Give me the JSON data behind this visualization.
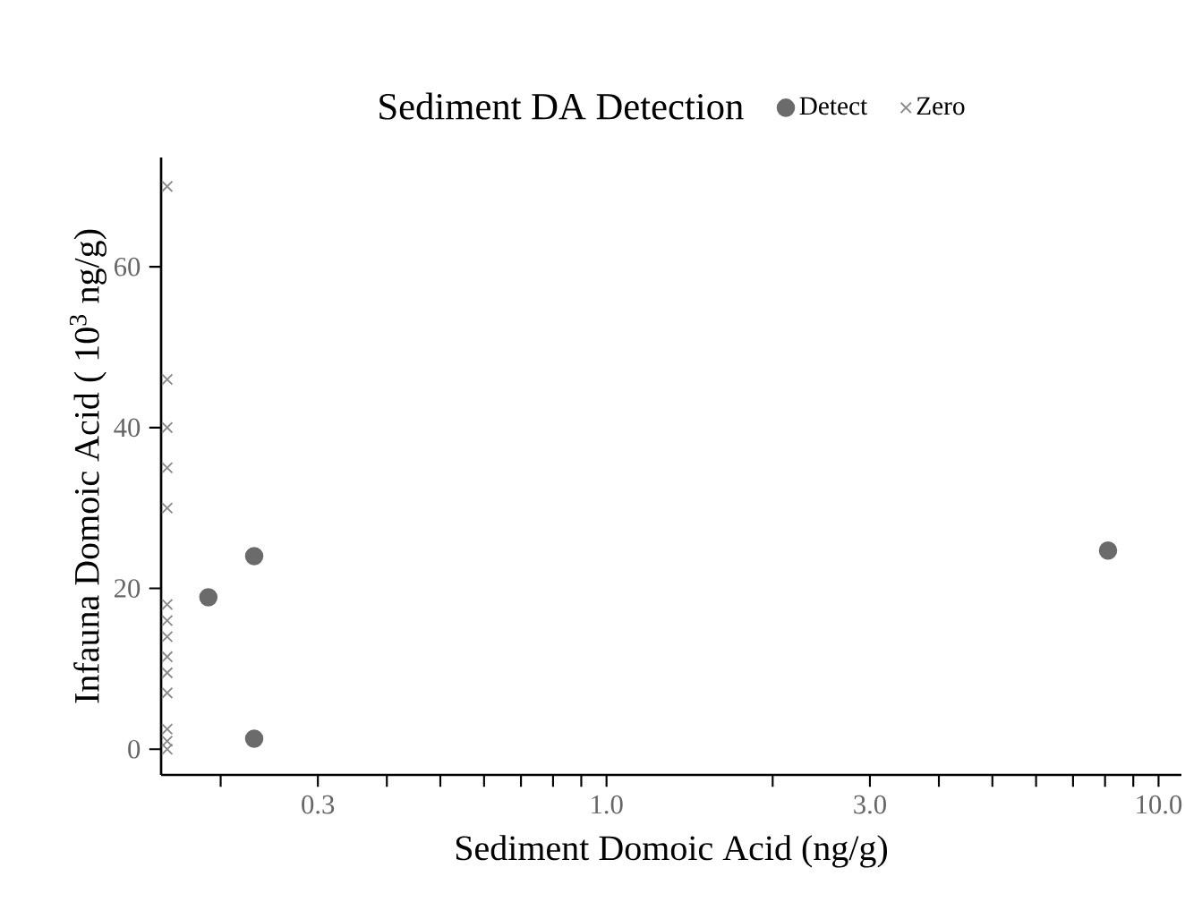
{
  "chart_data": {
    "type": "scatter",
    "xlabel": "Sediment Domoic Acid (ng/g)",
    "ylabel": "Infauna Domoic Acid ( 10$^{3}$ ng/g)",
    "legend_title": "Sediment DA Detection",
    "legend": "top",
    "log": "x",
    "grid": false,
    "xlim": [
      0.156,
      11
    ],
    "ylim": [
      -3.2,
      73.6
    ],
    "xticks": [
      {
        "value": 0.2,
        "label": null
      },
      0.3,
      {
        "value": 0.4,
        "label": null
      },
      {
        "value": 0.5,
        "label": null
      },
      {
        "value": 0.6,
        "label": null
      },
      {
        "value": 0.7,
        "label": null
      },
      {
        "value": 0.8,
        "label": null
      },
      {
        "value": 0.9,
        "label": null
      },
      {
        "value": 1,
        "label": "1.0"
      },
      {
        "value": 2,
        "label": null
      },
      {
        "value": 3,
        "label": "3.0"
      },
      {
        "value": 4,
        "label": null
      },
      {
        "value": 5,
        "label": null
      },
      {
        "value": 6,
        "label": null
      },
      {
        "value": 7,
        "label": null
      },
      {
        "value": 8,
        "label": null
      },
      {
        "value": 9,
        "label": null
      },
      {
        "value": 10,
        "label": "10.0"
      }
    ],
    "yticks": [
      0,
      20,
      40,
      60
    ],
    "series": [
      {
        "name": "Detect",
        "color": "#6b6b6b",
        "marker": "circle",
        "x": [
          0.19,
          0.23,
          0.23,
          8.1
        ],
        "values": [
          18.9,
          24.0,
          1.3,
          24.7
        ]
      },
      {
        "name": "Zero",
        "color": "#8a8a8a",
        "marker": "cross",
        "x": [
          0.16,
          0.16,
          0.16,
          0.16,
          0.16,
          0.16,
          0.16,
          0.16,
          0.16,
          0.16,
          0.16,
          0.16,
          0.16,
          0.16
        ],
        "values": [
          70,
          46,
          40,
          35,
          30,
          18,
          16,
          14,
          11.5,
          9.5,
          7,
          2.5,
          1,
          0
        ]
      }
    ]
  }
}
